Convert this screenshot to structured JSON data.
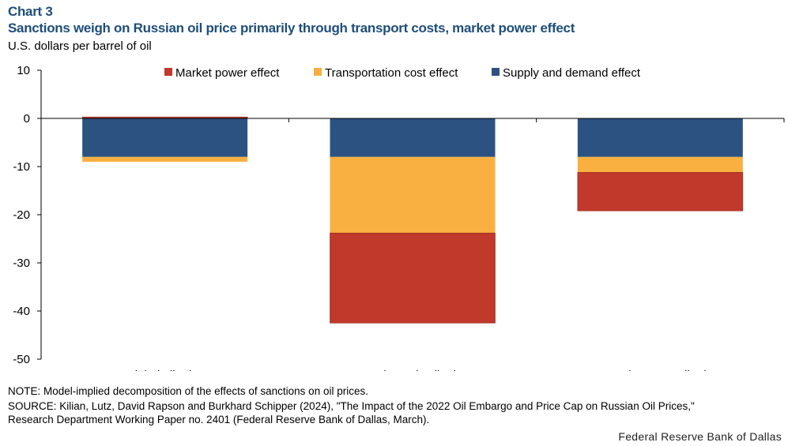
{
  "header": {
    "chart_label": "Chart 3",
    "title": "Sanctions weigh on Russian oil price primarily through transport costs, market power effect",
    "unit": "U.S. dollars per barrel of oil"
  },
  "footer": {
    "note": "NOTE: Model-implied decomposition of the effects of sanctions on oil prices.",
    "source_line1": "SOURCE: Kilian, Lutz, David Rapson and Burkhard Schipper (2024), \"The Impact of the 2022 Oil Embargo and Price Cap on Russian Oil Prices,\"",
    "source_line2": "Research Department Working Paper no. 2401 (Federal Reserve Bank of Dallas, March).",
    "credit": "Federal Reserve Bank of Dallas"
  },
  "chart_data": {
    "type": "bar",
    "stacked": true,
    "categories": [
      "Global oil price",
      "Russia-Urals oil price",
      "Russia-ESPO oil price"
    ],
    "series": [
      {
        "name": "Market power effect",
        "color": "#c0392b",
        "values": [
          0.3,
          -18.7,
          -8.0
        ]
      },
      {
        "name": "Transportation cost effect",
        "color": "#f9b040",
        "values": [
          -1.0,
          -15.8,
          -3.2
        ]
      },
      {
        "name": "Supply and demand effect",
        "color": "#2c5282",
        "values": [
          -8.0,
          -8.0,
          -8.0
        ]
      }
    ],
    "legend_order": [
      0,
      1,
      2
    ],
    "stack_order": [
      2,
      1,
      0
    ],
    "yticks": [
      10,
      0,
      -10,
      -20,
      -30,
      -40,
      -50
    ],
    "ylim": [
      -50,
      10
    ],
    "grid": false,
    "legend_position": "top"
  }
}
